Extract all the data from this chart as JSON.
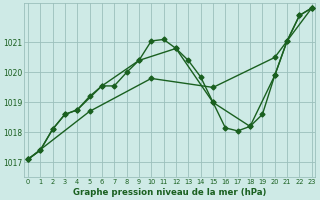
{
  "title": "Graphe pression niveau de la mer (hPa)",
  "bg_color": "#ceeae6",
  "grid_color": "#9bbfbb",
  "line_color": "#1a6020",
  "x_ticks": [
    0,
    1,
    2,
    3,
    4,
    5,
    6,
    7,
    8,
    9,
    10,
    11,
    12,
    13,
    14,
    15,
    16,
    17,
    18,
    19,
    20,
    21,
    22,
    23
  ],
  "y_ticks": [
    1017,
    1018,
    1019,
    1020,
    1021
  ],
  "ylim": [
    1016.5,
    1022.3
  ],
  "xlim": [
    -0.3,
    23.3
  ],
  "series": [
    {
      "x": [
        0,
        1,
        2,
        3,
        4,
        5,
        6,
        7,
        8,
        9,
        10,
        11,
        12,
        13,
        14,
        15,
        16,
        17,
        18,
        19,
        20,
        21,
        22,
        23
      ],
      "y": [
        1017.1,
        1017.4,
        1018.1,
        1018.6,
        1018.75,
        1019.2,
        1019.55,
        1019.55,
        1020.0,
        1020.4,
        1021.05,
        1021.1,
        1020.8,
        1020.4,
        1019.85,
        1019.0,
        1018.15,
        1018.05,
        1018.2,
        1018.6,
        1019.9,
        1021.05,
        1021.9,
        1022.15
      ],
      "marker": "D",
      "markersize": 2.5,
      "linewidth": 1.0,
      "linestyle": "-"
    },
    {
      "x": [
        0,
        1,
        2,
        3,
        4,
        6,
        9,
        12,
        15,
        18,
        20,
        21,
        22,
        23
      ],
      "y": [
        1017.1,
        1017.4,
        1018.1,
        1018.6,
        1018.75,
        1019.55,
        1020.4,
        1020.8,
        1019.0,
        1018.2,
        1019.9,
        1021.05,
        1021.9,
        1022.15
      ],
      "marker": "D",
      "markersize": 2.5,
      "linewidth": 1.0,
      "linestyle": "-"
    },
    {
      "x": [
        0,
        5,
        10,
        15,
        20,
        23
      ],
      "y": [
        1017.1,
        1018.7,
        1019.8,
        1019.5,
        1020.5,
        1022.15
      ],
      "marker": "D",
      "markersize": 2.5,
      "linewidth": 1.0,
      "linestyle": "-"
    }
  ]
}
